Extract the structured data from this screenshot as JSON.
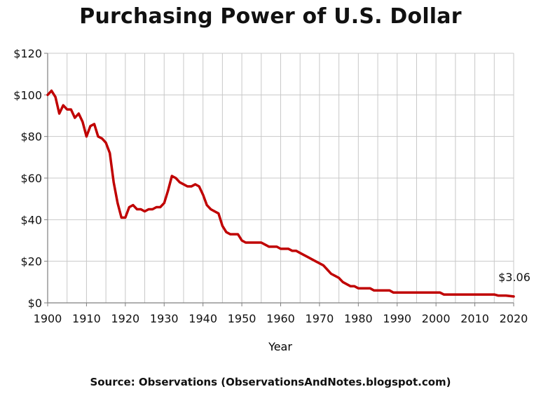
{
  "chart_data": {
    "type": "line",
    "title": "Purchasing Power of U.S. Dollar",
    "xlabel": "Year",
    "ylabel": "",
    "xlim": [
      1900,
      2020
    ],
    "ylim": [
      0,
      120
    ],
    "x_ticks": [
      "1900",
      "1910",
      "1920",
      "1930",
      "1940",
      "1950",
      "1960",
      "1970",
      "1980",
      "1990",
      "2000",
      "2010",
      "2020"
    ],
    "y_ticks": [
      "$0",
      "$20",
      "$40",
      "$60",
      "$80",
      "$100",
      "$120"
    ],
    "y_tick_values": [
      0,
      20,
      40,
      60,
      80,
      100,
      120
    ],
    "x_tick_values": [
      1900,
      1910,
      1920,
      1930,
      1940,
      1950,
      1960,
      1970,
      1980,
      1990,
      2000,
      2010,
      2020
    ],
    "grid": true,
    "line_color": "#c00000",
    "series": [
      {
        "x": [
          1900,
          1901,
          1902,
          1903,
          1904,
          1905,
          1906,
          1907,
          1908,
          1909,
          1910,
          1911,
          1912,
          1913,
          1914,
          1915,
          1916,
          1917,
          1918,
          1919,
          1920,
          1921,
          1922,
          1923,
          1924,
          1925,
          1926,
          1927,
          1928,
          1929,
          1930,
          1931,
          1932,
          1933,
          1934,
          1935,
          1936,
          1937,
          1938,
          1939,
          1940,
          1941,
          1942,
          1943,
          1944,
          1945,
          1946,
          1947,
          1948,
          1949,
          1950,
          1951,
          1952,
          1953,
          1954,
          1955,
          1956,
          1957,
          1958,
          1959,
          1960,
          1961,
          1962,
          1963,
          1964,
          1965,
          1966,
          1967,
          1968,
          1969,
          1970,
          1971,
          1972,
          1973,
          1974,
          1975,
          1976,
          1977,
          1978,
          1979,
          1980,
          1981,
          1982,
          1983,
          1984,
          1985,
          1986,
          1987,
          1988,
          1989,
          1990,
          1991,
          1992,
          1993,
          1994,
          1995,
          1996,
          1997,
          1998,
          1999,
          2000,
          2001,
          2002,
          2003,
          2004,
          2005,
          2006,
          2007,
          2008,
          2009,
          2010,
          2011,
          2012,
          2013,
          2014,
          2015,
          2016,
          2017,
          2018,
          2019,
          2020
        ],
        "values": [
          100,
          102,
          99,
          91,
          95,
          93,
          93,
          89,
          91,
          87,
          80,
          85,
          86,
          80,
          79,
          77,
          72,
          58,
          48,
          41,
          41,
          46,
          47,
          45,
          45,
          44,
          45,
          45,
          46,
          46,
          48,
          54,
          61,
          60,
          58,
          57,
          56,
          56,
          57,
          56,
          52,
          47,
          45,
          44,
          43,
          37,
          34,
          33,
          33,
          33,
          30,
          29,
          29,
          29,
          29,
          29,
          28,
          27,
          27,
          27,
          26,
          26,
          26,
          25,
          25,
          24,
          23,
          22,
          21,
          20,
          19,
          18,
          16,
          14,
          13,
          12,
          10,
          9,
          8,
          8,
          7,
          7,
          7,
          7,
          6,
          6,
          6,
          6,
          6,
          5,
          5,
          5,
          5,
          5,
          5,
          5,
          5,
          5,
          5,
          5,
          5,
          5,
          4,
          4,
          4,
          4,
          4,
          4,
          4,
          4,
          4,
          4,
          4,
          4,
          4,
          4,
          3.5,
          3.5,
          3.5,
          3.3,
          3.06
        ]
      }
    ],
    "annotation": "$3.06"
  },
  "source": "Source: Observations (ObservationsAndNotes.blogspot.com)"
}
